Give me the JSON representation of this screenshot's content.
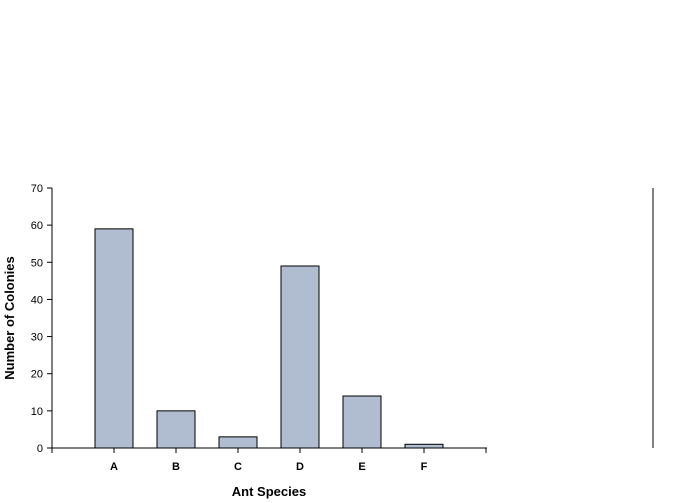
{
  "chart_data": {
    "type": "bar",
    "categories": [
      "A",
      "B",
      "C",
      "D",
      "E",
      "F"
    ],
    "values": [
      59,
      10,
      3,
      49,
      14,
      1
    ],
    "xlabel": "Ant Species",
    "ylabel": "Number of Colonies",
    "ylim": [
      0,
      70
    ],
    "yticks": [
      0,
      10,
      20,
      30,
      40,
      50,
      60,
      70
    ],
    "grid": false,
    "legend": "none",
    "colors": {
      "bar_fill": "#b0bccf",
      "bar_stroke": "#000000",
      "axis": "#000000"
    }
  }
}
